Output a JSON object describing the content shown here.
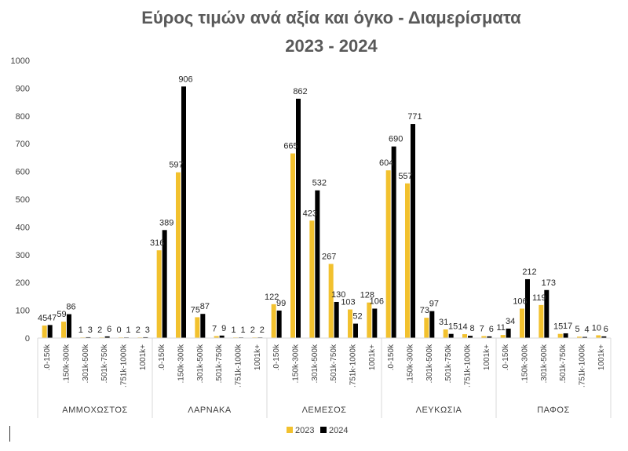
{
  "chart_data": {
    "type": "bar",
    "title_line1": "Εύρος τιμών ανά αξία και όγκο - Διαμερίσματα",
    "title_line2": "2023 - 2024",
    "ylim": [
      0,
      1000
    ],
    "yticks": [
      "0",
      "100",
      "200",
      "300",
      "400",
      "500",
      "600",
      "700",
      "800",
      "900",
      "1000"
    ],
    "groups": [
      {
        "name": "ΑΜΜΟΧΩΣΤΟΣ"
      },
      {
        "name": "ΛΑΡΝΑΚΑ"
      },
      {
        "name": "ΛΕΜΕΣΟΣ"
      },
      {
        "name": "ΛΕΥΚΩΣΙΑ"
      },
      {
        "name": "ΠΑΦΟΣ"
      }
    ],
    "categories": [
      ".0-150k",
      ".150k-300k",
      ".301k-500k",
      ".501k-750k",
      ".751k-1000k",
      "1001k+"
    ],
    "series": [
      {
        "name": "2023",
        "color": "#f2c12e",
        "values": [
          [
            45,
            59,
            1,
            2,
            0,
            2
          ],
          [
            316,
            597,
            75,
            7,
            1,
            2
          ],
          [
            122,
            665,
            423,
            267,
            103,
            128
          ],
          [
            604,
            557,
            73,
            31,
            14,
            7
          ],
          [
            11,
            106,
            119,
            15,
            5,
            10
          ]
        ]
      },
      {
        "name": "2024",
        "color": "#000000",
        "values": [
          [
            47,
            86,
            3,
            6,
            1,
            3
          ],
          [
            389,
            906,
            87,
            9,
            1,
            2
          ],
          [
            99,
            862,
            532,
            130,
            52,
            106
          ],
          [
            690,
            771,
            97,
            15,
            8,
            6
          ],
          [
            34,
            212,
            173,
            17,
            4,
            6
          ]
        ]
      }
    ],
    "legend_position": "bottom"
  }
}
